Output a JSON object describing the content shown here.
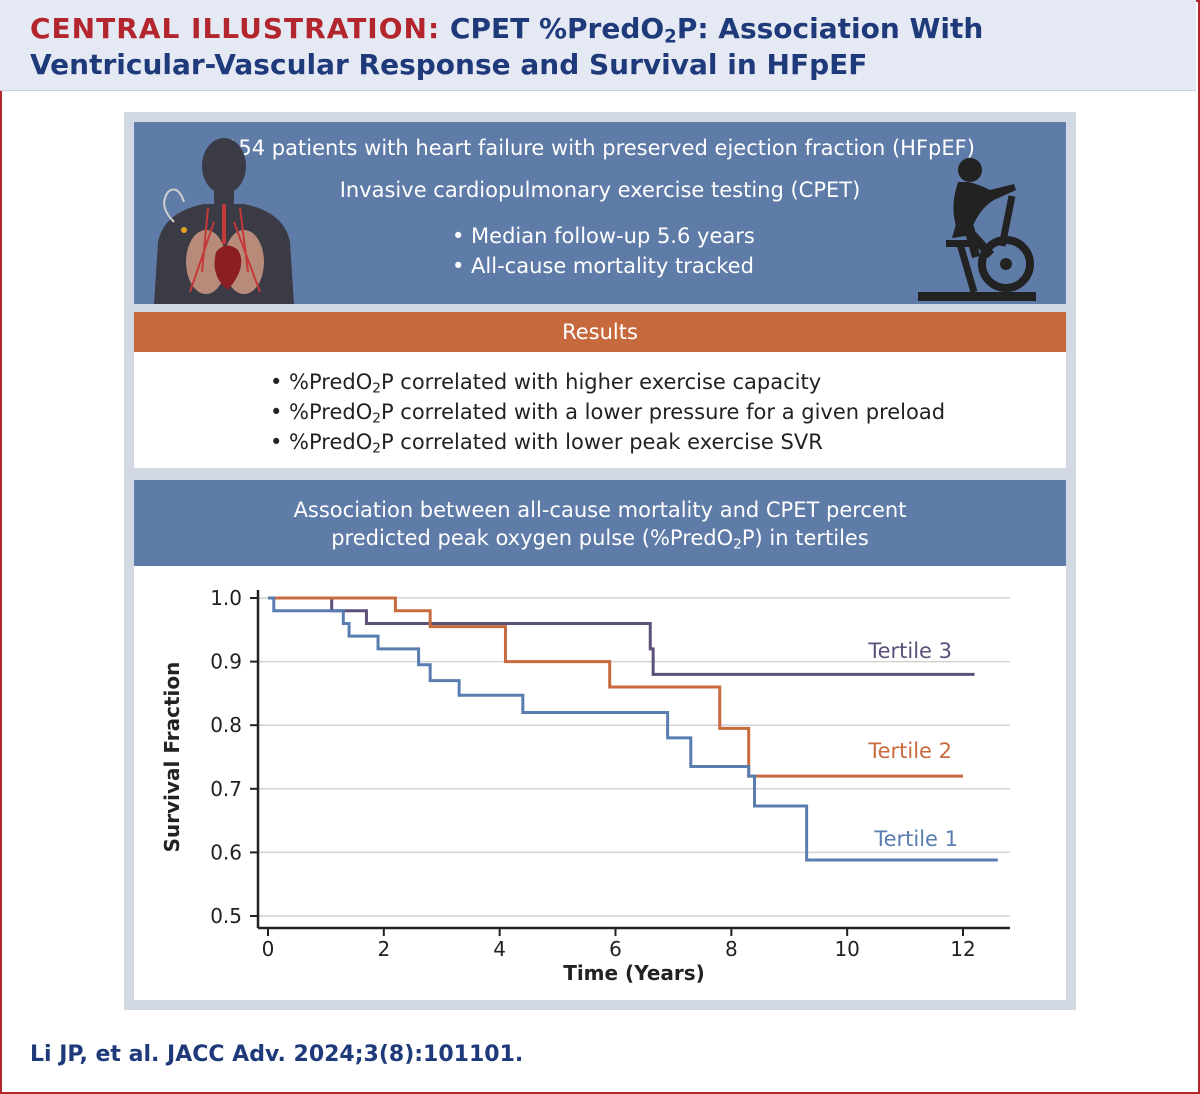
{
  "header": {
    "label": "CENTRAL ILLUSTRATION:",
    "title_a": "CPET %PredO",
    "title_sub": "2",
    "title_b": "P: Association With",
    "title_line2": "Ventricular-Vascular Response and Survival in HFpEF"
  },
  "study": {
    "line1": "154 patients with heart failure with preserved ejection fraction (HFpEF)",
    "line2": "Invasive cardiopulmonary exercise testing (CPET)",
    "bullets": [
      "• Median follow-up 5.6 years",
      "• All-cause mortality tracked"
    ]
  },
  "results": {
    "heading": "Results",
    "items": [
      {
        "pre": "• %PredO",
        "sub": "2",
        "post": "P correlated with higher exercise capacity"
      },
      {
        "pre": "• %PredO",
        "sub": "2",
        "post": "P correlated with a lower pressure for a given preload"
      },
      {
        "pre": "• %PredO",
        "sub": "2",
        "post": "P correlated with lower peak exercise SVR"
      }
    ]
  },
  "association": {
    "line1": "Association between all-cause mortality and CPET percent",
    "line2_pre": "predicted peak oxygen pulse (%PredO",
    "line2_sub": "2",
    "line2_post": "P) in tertiles"
  },
  "chart_data": {
    "type": "line",
    "step": true,
    "xlabel": "Time (Years)",
    "ylabel": "Survival Fraction",
    "xlim": [
      0,
      12.6
    ],
    "ylim": [
      0.5,
      1.0
    ],
    "xticks": [
      "0",
      "2",
      "4",
      "6",
      "8",
      "10",
      "12"
    ],
    "yticks": [
      "0.5",
      "0.6",
      "0.7",
      "0.8",
      "0.9",
      "1.0"
    ],
    "grid": true,
    "series": [
      {
        "name": "Tertile 3",
        "color": "#5c4f78",
        "x": [
          0,
          1.1,
          1.7,
          6.6,
          6.65,
          12.2
        ],
        "y": [
          1.0,
          0.98,
          0.96,
          0.92,
          0.88,
          0.88
        ]
      },
      {
        "name": "Tertile 2",
        "color": "#c86a3e",
        "x": [
          0,
          2.2,
          2.8,
          4.1,
          5.9,
          7.8,
          8.3,
          12.0
        ],
        "y": [
          1.0,
          0.98,
          0.955,
          0.9,
          0.86,
          0.795,
          0.72,
          0.72
        ]
      },
      {
        "name": "Tertile 1",
        "color": "#5a7db0",
        "x": [
          0,
          0.1,
          1.3,
          1.4,
          1.9,
          2.6,
          2.8,
          3.3,
          4.4,
          6.9,
          7.3,
          8.3,
          8.4,
          9.3,
          12.6
        ],
        "y": [
          1.0,
          0.98,
          0.96,
          0.94,
          0.92,
          0.895,
          0.87,
          0.847,
          0.82,
          0.78,
          0.735,
          0.72,
          0.673,
          0.588,
          0.588
        ]
      }
    ]
  },
  "citation": "Li JP, et al. JACC Adv. 2024;3(8):101101.",
  "icons": {
    "left": "human-heart-lungs-icon",
    "right": "exercise-bike-icon"
  }
}
